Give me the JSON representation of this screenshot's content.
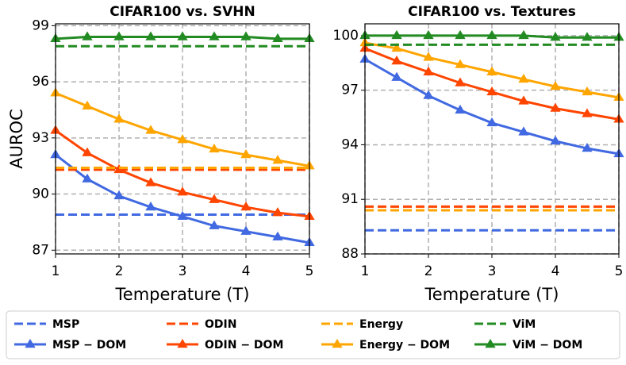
{
  "chart_data": [
    {
      "type": "line",
      "title": "CIFAR100  vs.  SVHN",
      "xlabel": "Temperature (T)",
      "ylabel": "AUROC",
      "x": [
        1,
        1.5,
        2,
        2.5,
        3,
        3.5,
        4,
        4.5,
        5
      ],
      "xlim": [
        1,
        5
      ],
      "xticks": [
        1,
        2,
        3,
        4,
        5
      ],
      "ylim": [
        86.8,
        99.1
      ],
      "yticks": [
        87,
        90,
        93,
        96,
        99
      ],
      "grid": true,
      "series": [
        {
          "name": "MSP",
          "color": "#4169e1",
          "linestyle": "dashed",
          "values": [
            88.9,
            88.9,
            88.9,
            88.9,
            88.9,
            88.9,
            88.9,
            88.9,
            88.9
          ]
        },
        {
          "name": "MSP − DOM",
          "color": "#4169e1",
          "linestyle": "solid",
          "marker": "triangle",
          "values": [
            92.1,
            90.8,
            89.9,
            89.3,
            88.8,
            88.3,
            88.0,
            87.7,
            87.4
          ]
        },
        {
          "name": "ODIN",
          "color": "#ff4500",
          "linestyle": "dashed",
          "values": [
            91.3,
            91.3,
            91.3,
            91.3,
            91.3,
            91.3,
            91.3,
            91.3,
            91.3
          ]
        },
        {
          "name": "ODIN − DOM",
          "color": "#ff4500",
          "linestyle": "solid",
          "marker": "triangle",
          "values": [
            93.4,
            92.2,
            91.3,
            90.6,
            90.1,
            89.7,
            89.3,
            89.0,
            88.8
          ]
        },
        {
          "name": "Energy",
          "color": "#ffa500",
          "linestyle": "dashed",
          "values": [
            91.4,
            91.4,
            91.4,
            91.4,
            91.4,
            91.4,
            91.4,
            91.4,
            91.4
          ]
        },
        {
          "name": "Energy − DOM",
          "color": "#ffa500",
          "linestyle": "solid",
          "marker": "triangle",
          "values": [
            95.4,
            94.7,
            94.0,
            93.4,
            92.9,
            92.4,
            92.1,
            91.8,
            91.5
          ]
        },
        {
          "name": "ViM",
          "color": "#228b22",
          "linestyle": "dashed",
          "values": [
            97.9,
            97.9,
            97.9,
            97.9,
            97.9,
            97.9,
            97.9,
            97.9,
            97.9
          ]
        },
        {
          "name": "ViM − DOM",
          "color": "#228b22",
          "linestyle": "solid",
          "marker": "triangle",
          "values": [
            98.3,
            98.4,
            98.4,
            98.4,
            98.4,
            98.4,
            98.4,
            98.3,
            98.3
          ]
        }
      ]
    },
    {
      "type": "line",
      "title": "CIFAR100  vs.  Textures",
      "xlabel": "Temperature (T)",
      "x": [
        1,
        1.5,
        2,
        2.5,
        3,
        3.5,
        4,
        4.5,
        5
      ],
      "xlim": [
        1,
        5
      ],
      "xticks": [
        1,
        2,
        3,
        4,
        5
      ],
      "ylim": [
        88,
        100.65
      ],
      "yticks": [
        88,
        91,
        94,
        97,
        100
      ],
      "grid": true,
      "series": [
        {
          "color": "#4169e1",
          "linestyle": "dashed",
          "values": [
            89.3,
            89.3,
            89.3,
            89.3,
            89.3,
            89.3,
            89.3,
            89.3,
            89.3
          ]
        },
        {
          "color": "#4169e1",
          "linestyle": "solid",
          "marker": "triangle",
          "values": [
            98.7,
            97.7,
            96.7,
            95.9,
            95.2,
            94.7,
            94.2,
            93.8,
            93.5
          ]
        },
        {
          "color": "#ff4500",
          "linestyle": "dashed",
          "values": [
            90.6,
            90.6,
            90.6,
            90.6,
            90.6,
            90.6,
            90.6,
            90.6,
            90.6
          ]
        },
        {
          "color": "#ff4500",
          "linestyle": "solid",
          "marker": "triangle",
          "values": [
            99.3,
            98.6,
            98.0,
            97.4,
            96.9,
            96.4,
            96.0,
            95.7,
            95.4
          ]
        },
        {
          "color": "#ffa500",
          "linestyle": "dashed",
          "values": [
            90.4,
            90.4,
            90.4,
            90.4,
            90.4,
            90.4,
            90.4,
            90.4,
            90.4
          ]
        },
        {
          "color": "#ffa500",
          "linestyle": "solid",
          "marker": "triangle",
          "values": [
            99.6,
            99.3,
            98.8,
            98.4,
            98.0,
            97.6,
            97.2,
            96.9,
            96.6
          ]
        },
        {
          "color": "#228b22",
          "linestyle": "dashed",
          "values": [
            99.5,
            99.5,
            99.5,
            99.5,
            99.5,
            99.5,
            99.5,
            99.5,
            99.5
          ]
        },
        {
          "color": "#228b22",
          "linestyle": "solid",
          "marker": "triangle",
          "values": [
            100.0,
            100.0,
            100.0,
            100.0,
            100.0,
            100.0,
            99.9,
            99.9,
            99.9
          ]
        }
      ]
    }
  ]
}
